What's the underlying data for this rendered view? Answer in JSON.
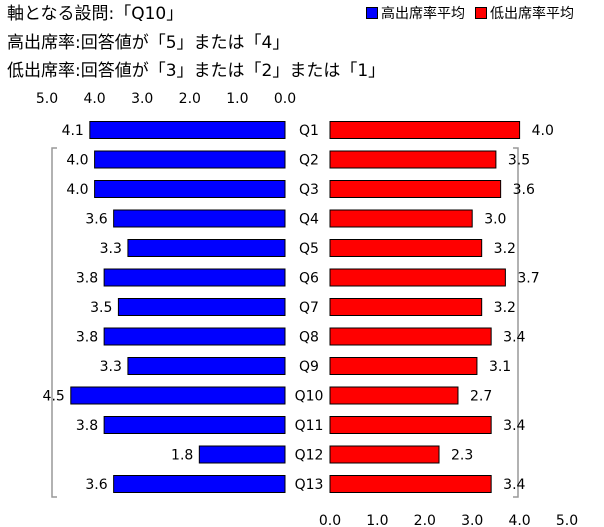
{
  "header": {
    "line1": "軸となる設問:「Q10」",
    "line2": "高出席率:回答値が「5」または「4」",
    "line3": "低出席率:回答値が「3」または「2」または「1」"
  },
  "colors": {
    "high": "#0000ff",
    "low": "#ff0000",
    "bracket": "#999999"
  },
  "chart_data": {
    "type": "bar",
    "categories": [
      "Q1",
      "Q2",
      "Q3",
      "Q4",
      "Q5",
      "Q6",
      "Q7",
      "Q8",
      "Q9",
      "Q10",
      "Q11",
      "Q12",
      "Q13"
    ],
    "series": [
      {
        "name": "高出席率平均",
        "values": [
          4.1,
          4.0,
          4.0,
          3.6,
          3.3,
          3.8,
          3.5,
          3.8,
          3.3,
          4.5,
          3.8,
          1.8,
          3.6
        ]
      },
      {
        "name": "低出席率平均",
        "values": [
          4.0,
          3.5,
          3.6,
          3.0,
          3.2,
          3.7,
          3.2,
          3.4,
          3.1,
          2.7,
          3.4,
          2.3,
          3.4
        ]
      }
    ],
    "left_ticks": [
      "5.0",
      "4.0",
      "3.0",
      "2.0",
      "1.0",
      "0.0"
    ],
    "right_ticks": [
      "0.0",
      "1.0",
      "2.0",
      "3.0",
      "4.0",
      "5.0"
    ],
    "xlim": [
      0,
      5
    ],
    "legend_position": "top-right"
  }
}
